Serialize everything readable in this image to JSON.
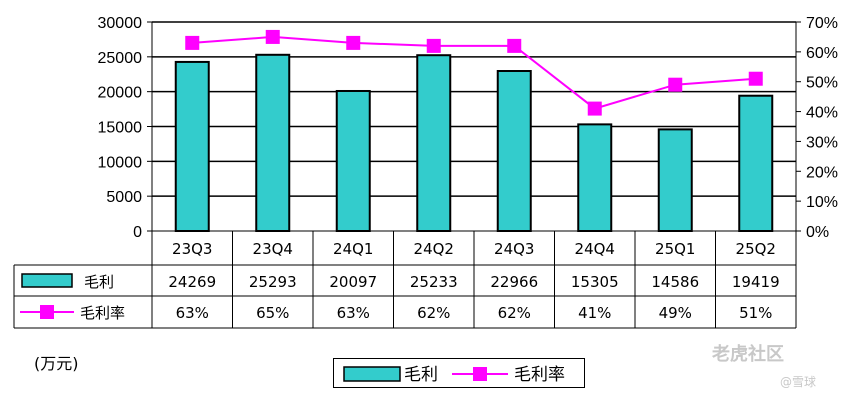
{
  "chart_data": {
    "type": "bar+line",
    "categories": [
      "23Q3",
      "23Q4",
      "24Q1",
      "24Q2",
      "24Q3",
      "24Q4",
      "25Q1",
      "25Q2"
    ],
    "series": [
      {
        "name": "毛利",
        "type": "bar",
        "axis": "left",
        "color": "#33CCCC",
        "values": [
          24269,
          25293,
          20097,
          25233,
          22966,
          15305,
          14586,
          19419
        ]
      },
      {
        "name": "毛利率",
        "type": "line",
        "axis": "right",
        "color": "#FF00FF",
        "values": [
          63,
          65,
          63,
          62,
          62,
          41,
          49,
          51
        ],
        "labels": [
          "63%",
          "65%",
          "63%",
          "62%",
          "62%",
          "41%",
          "49%",
          "51%"
        ]
      }
    ],
    "left_axis": {
      "ylim": [
        0,
        30000
      ],
      "ticks": [
        "0",
        "5000",
        "10000",
        "15000",
        "20000",
        "25000",
        "30000"
      ]
    },
    "right_axis": {
      "ylim": [
        0,
        70
      ],
      "ticks": [
        "0%",
        "10%",
        "20%",
        "30%",
        "40%",
        "50%",
        "60%",
        "70%"
      ]
    },
    "grid": true,
    "data_table": true,
    "legend_position": "bottom-center"
  },
  "unit_label": "(万元)",
  "watermark": "老虎社区",
  "watermark_sub": "@雪球"
}
